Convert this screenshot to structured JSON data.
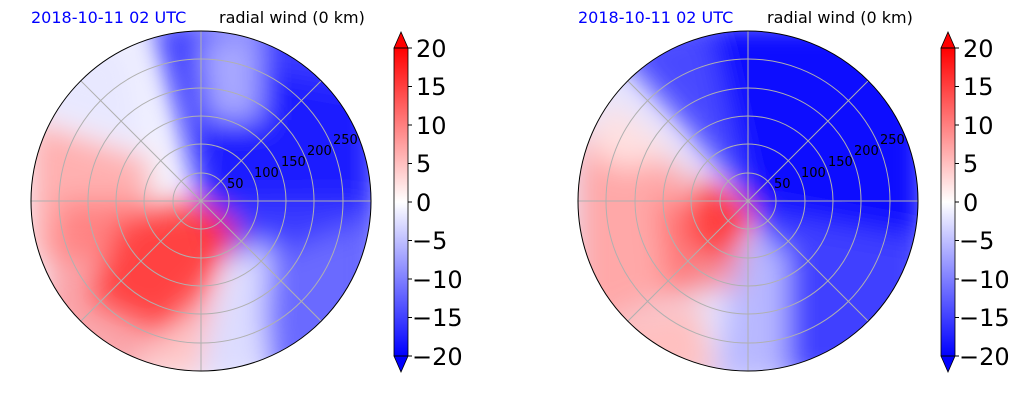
{
  "figure": {
    "colors": {
      "datetime_title": "#0000ff",
      "text": "#000000",
      "grid": "#b0b0b0"
    }
  },
  "chart_data": [
    {
      "type": "heatmap",
      "projection": "polar",
      "title_left": "2018-10-11 02 UTC",
      "title_right": "radial wind (0 km)",
      "radial_tick_labels": [
        "50",
        "100",
        "150",
        "200",
        "250"
      ],
      "colorbar": {
        "range": [
          -20,
          20
        ],
        "tick_labels": [
          "20",
          "15",
          "10",
          "5",
          "0",
          "−5",
          "−10",
          "−15",
          "−20"
        ],
        "extend": "both",
        "colormap": "bwr"
      },
      "description_values": "outflow (positive, red) southwest quadrant, inflow (negative, blue) northeast"
    },
    {
      "type": "heatmap",
      "projection": "polar",
      "title_left": "2018-10-11 02 UTC",
      "title_right": "radial wind (0 km)",
      "radial_tick_labels": [
        "50",
        "100",
        "150",
        "200",
        "250"
      ],
      "colorbar": {
        "range": [
          -20,
          20
        ],
        "tick_labels": [
          "20",
          "15",
          "10",
          "5",
          "0",
          "−5",
          "−10",
          "−15",
          "−20"
        ],
        "extend": "both",
        "colormap": "bwr"
      }
    }
  ]
}
